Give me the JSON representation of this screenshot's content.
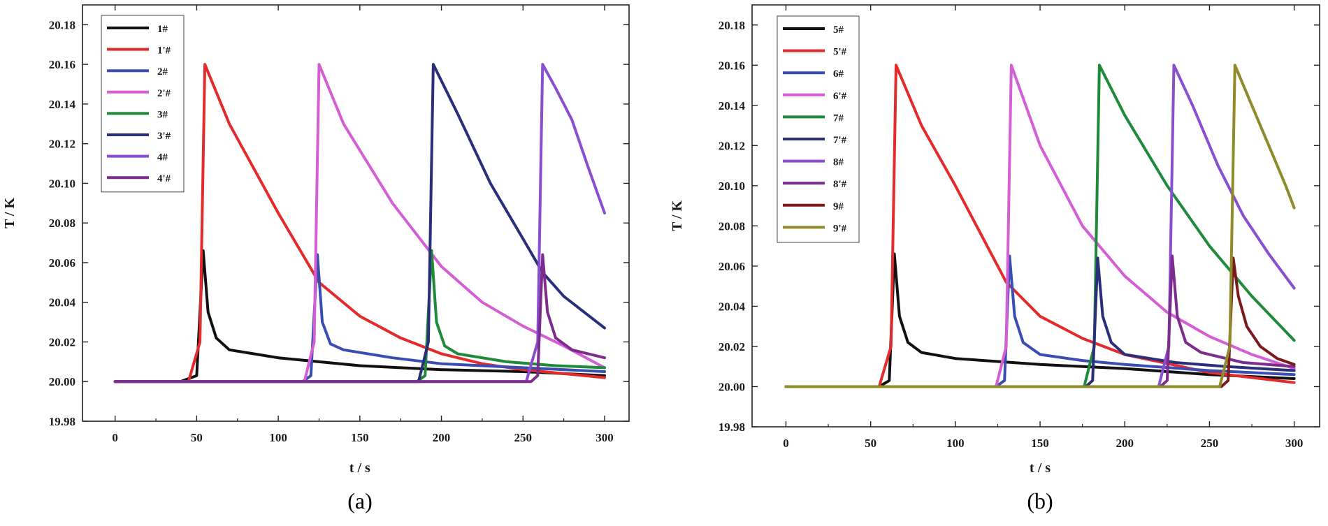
{
  "chart_data": [
    {
      "id": "a",
      "type": "line",
      "caption": "(a)",
      "xlabel": "t / s",
      "ylabel": "T / K",
      "xlim": [
        -20,
        315
      ],
      "ylim": [
        19.98,
        20.19
      ],
      "xticks": [
        0,
        50,
        100,
        150,
        200,
        250,
        300
      ],
      "yticks": [
        19.98,
        20.0,
        20.02,
        20.04,
        20.06,
        20.08,
        20.1,
        20.12,
        20.14,
        20.16,
        20.18
      ],
      "ytick_labels": [
        "19.98",
        "20.00",
        "20.02",
        "20.04",
        "20.06",
        "20.08",
        "20.10",
        "20.12",
        "20.14",
        "20.16",
        "20.18"
      ],
      "legend_position": "top-left",
      "series": [
        {
          "name": "1#",
          "color": "#111111",
          "onset": 54,
          "peak": 20.066,
          "points": [
            [
              0,
              20.0
            ],
            [
              40,
              20.0
            ],
            [
              50,
              20.003
            ],
            [
              54,
              20.066
            ],
            [
              57,
              20.035
            ],
            [
              62,
              20.022
            ],
            [
              70,
              20.016
            ],
            [
              100,
              20.012
            ],
            [
              150,
              20.008
            ],
            [
              200,
              20.006
            ],
            [
              250,
              20.005
            ],
            [
              300,
              20.003
            ]
          ]
        },
        {
          "name": "1'#",
          "color": "#e32b2b",
          "onset": 54,
          "peak": 20.16,
          "points": [
            [
              0,
              20.0
            ],
            [
              45,
              20.0
            ],
            [
              52,
              20.02
            ],
            [
              55,
              20.16
            ],
            [
              70,
              20.13
            ],
            [
              100,
              20.085
            ],
            [
              125,
              20.05
            ],
            [
              150,
              20.033
            ],
            [
              175,
              20.022
            ],
            [
              200,
              20.014
            ],
            [
              225,
              20.009
            ],
            [
              250,
              20.006
            ],
            [
              275,
              20.004
            ],
            [
              300,
              20.002
            ]
          ]
        },
        {
          "name": "2#",
          "color": "#3a4db3",
          "onset": 124,
          "peak": 20.064,
          "points": [
            [
              0,
              20.0
            ],
            [
              115,
              20.0
            ],
            [
              120,
              20.003
            ],
            [
              124,
              20.064
            ],
            [
              127,
              20.03
            ],
            [
              132,
              20.019
            ],
            [
              140,
              20.016
            ],
            [
              170,
              20.012
            ],
            [
              200,
              20.009
            ],
            [
              250,
              20.007
            ],
            [
              300,
              20.005
            ]
          ]
        },
        {
          "name": "2'#",
          "color": "#d45ed4",
          "onset": 124,
          "peak": 20.16,
          "points": [
            [
              0,
              20.0
            ],
            [
              116,
              20.0
            ],
            [
              122,
              20.02
            ],
            [
              125,
              20.16
            ],
            [
              140,
              20.13
            ],
            [
              170,
              20.09
            ],
            [
              200,
              20.058
            ],
            [
              225,
              20.04
            ],
            [
              250,
              20.028
            ],
            [
              275,
              20.018
            ],
            [
              300,
              20.007
            ]
          ]
        },
        {
          "name": "3#",
          "color": "#1f8a3a",
          "onset": 194,
          "peak": 20.066,
          "points": [
            [
              0,
              20.0
            ],
            [
              185,
              20.0
            ],
            [
              190,
              20.003
            ],
            [
              194,
              20.066
            ],
            [
              197,
              20.03
            ],
            [
              202,
              20.018
            ],
            [
              210,
              20.014
            ],
            [
              240,
              20.01
            ],
            [
              270,
              20.008
            ],
            [
              300,
              20.007
            ]
          ]
        },
        {
          "name": "3'#",
          "color": "#2a2f7a",
          "onset": 194,
          "peak": 20.16,
          "points": [
            [
              0,
              20.0
            ],
            [
              186,
              20.0
            ],
            [
              192,
              20.02
            ],
            [
              195,
              20.16
            ],
            [
              210,
              20.135
            ],
            [
              230,
              20.1
            ],
            [
              250,
              20.072
            ],
            [
              262,
              20.055
            ],
            [
              275,
              20.043
            ],
            [
              300,
              20.027
            ]
          ]
        },
        {
          "name": "4#",
          "color": "#8a4fd0",
          "onset": 262,
          "peak": 20.16,
          "points": [
            [
              0,
              20.0
            ],
            [
              252,
              20.0
            ],
            [
              259,
              20.02
            ],
            [
              262,
              20.16
            ],
            [
              270,
              20.148
            ],
            [
              280,
              20.132
            ],
            [
              290,
              20.108
            ],
            [
              300,
              20.085
            ]
          ]
        },
        {
          "name": "4'#",
          "color": "#7b2c8c",
          "onset": 262,
          "peak": 20.064,
          "points": [
            [
              0,
              20.0
            ],
            [
              255,
              20.0
            ],
            [
              259,
              20.003
            ],
            [
              262,
              20.064
            ],
            [
              265,
              20.035
            ],
            [
              270,
              20.022
            ],
            [
              280,
              20.016
            ],
            [
              300,
              20.012
            ]
          ]
        }
      ]
    },
    {
      "id": "b",
      "type": "line",
      "caption": "(b)",
      "xlabel": "t / s",
      "ylabel": "T / K",
      "xlim": [
        -20,
        315
      ],
      "ylim": [
        19.98,
        20.19
      ],
      "xticks": [
        0,
        50,
        100,
        150,
        200,
        250,
        300
      ],
      "yticks": [
        19.98,
        20.0,
        20.02,
        20.04,
        20.06,
        20.08,
        20.1,
        20.12,
        20.14,
        20.16,
        20.18
      ],
      "ytick_labels": [
        "19.98",
        "20.00",
        "20.02",
        "20.04",
        "20.06",
        "20.08",
        "20.10",
        "20.12",
        "20.14",
        "20.16",
        "20.18"
      ],
      "legend_position": "top-left",
      "series": [
        {
          "name": "5#",
          "color": "#111111",
          "onset": 64,
          "peak": 20.066,
          "points": [
            [
              0,
              20.0
            ],
            [
              55,
              20.0
            ],
            [
              61,
              20.003
            ],
            [
              64,
              20.066
            ],
            [
              67,
              20.035
            ],
            [
              72,
              20.022
            ],
            [
              80,
              20.017
            ],
            [
              100,
              20.014
            ],
            [
              150,
              20.011
            ],
            [
              200,
              20.009
            ],
            [
              250,
              20.006
            ],
            [
              300,
              20.004
            ]
          ]
        },
        {
          "name": "5'#",
          "color": "#e32b2b",
          "onset": 64,
          "peak": 20.16,
          "points": [
            [
              0,
              20.0
            ],
            [
              55,
              20.0
            ],
            [
              62,
              20.02
            ],
            [
              65,
              20.16
            ],
            [
              80,
              20.13
            ],
            [
              100,
              20.1
            ],
            [
              130,
              20.052
            ],
            [
              150,
              20.035
            ],
            [
              175,
              20.024
            ],
            [
              200,
              20.016
            ],
            [
              250,
              20.007
            ],
            [
              300,
              20.002
            ]
          ]
        },
        {
          "name": "6#",
          "color": "#3a4db3",
          "onset": 132,
          "peak": 20.065,
          "points": [
            [
              0,
              20.0
            ],
            [
              124,
              20.0
            ],
            [
              129,
              20.003
            ],
            [
              132,
              20.065
            ],
            [
              135,
              20.035
            ],
            [
              140,
              20.022
            ],
            [
              150,
              20.016
            ],
            [
              175,
              20.013
            ],
            [
              200,
              20.011
            ],
            [
              250,
              20.008
            ],
            [
              300,
              20.006
            ]
          ]
        },
        {
          "name": "6'#",
          "color": "#d45ed4",
          "onset": 132,
          "peak": 20.16,
          "points": [
            [
              0,
              20.0
            ],
            [
              124,
              20.0
            ],
            [
              130,
              20.02
            ],
            [
              133,
              20.16
            ],
            [
              150,
              20.12
            ],
            [
              175,
              20.08
            ],
            [
              200,
              20.055
            ],
            [
              225,
              20.037
            ],
            [
              250,
              20.025
            ],
            [
              275,
              20.016
            ],
            [
              300,
              20.009
            ]
          ]
        },
        {
          "name": "7#",
          "color": "#1f8a3a",
          "onset": 184,
          "peak": 20.16,
          "points": [
            [
              0,
              20.0
            ],
            [
              176,
              20.0
            ],
            [
              182,
              20.02
            ],
            [
              185,
              20.16
            ],
            [
              200,
              20.135
            ],
            [
              225,
              20.1
            ],
            [
              250,
              20.07
            ],
            [
              275,
              20.045
            ],
            [
              300,
              20.023
            ]
          ]
        },
        {
          "name": "7'#",
          "color": "#2a2f7a",
          "onset": 184,
          "peak": 20.064,
          "points": [
            [
              0,
              20.0
            ],
            [
              177,
              20.0
            ],
            [
              181,
              20.003
            ],
            [
              184,
              20.064
            ],
            [
              187,
              20.035
            ],
            [
              192,
              20.022
            ],
            [
              200,
              20.016
            ],
            [
              230,
              20.012
            ],
            [
              260,
              20.01
            ],
            [
              300,
              20.008
            ]
          ]
        },
        {
          "name": "8#",
          "color": "#8a4fd0",
          "onset": 228,
          "peak": 20.16,
          "points": [
            [
              0,
              20.0
            ],
            [
              220,
              20.0
            ],
            [
              226,
              20.02
            ],
            [
              229,
              20.16
            ],
            [
              240,
              20.14
            ],
            [
              255,
              20.11
            ],
            [
              270,
              20.085
            ],
            [
              285,
              20.066
            ],
            [
              300,
              20.049
            ]
          ]
        },
        {
          "name": "8'#",
          "color": "#7b2c8c",
          "onset": 228,
          "peak": 20.065,
          "points": [
            [
              0,
              20.0
            ],
            [
              221,
              20.0
            ],
            [
              225,
              20.003
            ],
            [
              228,
              20.065
            ],
            [
              231,
              20.035
            ],
            [
              236,
              20.022
            ],
            [
              245,
              20.017
            ],
            [
              270,
              20.012
            ],
            [
              300,
              20.01
            ]
          ]
        },
        {
          "name": "9#",
          "color": "#7a1a1a",
          "onset": 264,
          "peak": 20.064,
          "points": [
            [
              0,
              20.0
            ],
            [
              257,
              20.0
            ],
            [
              261,
              20.003
            ],
            [
              264,
              20.064
            ],
            [
              267,
              20.045
            ],
            [
              272,
              20.03
            ],
            [
              280,
              20.02
            ],
            [
              290,
              20.014
            ],
            [
              300,
              20.011
            ]
          ]
        },
        {
          "name": "9'#",
          "color": "#8f8a2a",
          "onset": 264,
          "peak": 20.16,
          "points": [
            [
              0,
              20.0
            ],
            [
              256,
              20.0
            ],
            [
              262,
              20.02
            ],
            [
              265,
              20.16
            ],
            [
              275,
              20.14
            ],
            [
              285,
              20.12
            ],
            [
              295,
              20.1
            ],
            [
              300,
              20.089
            ]
          ]
        }
      ]
    }
  ]
}
